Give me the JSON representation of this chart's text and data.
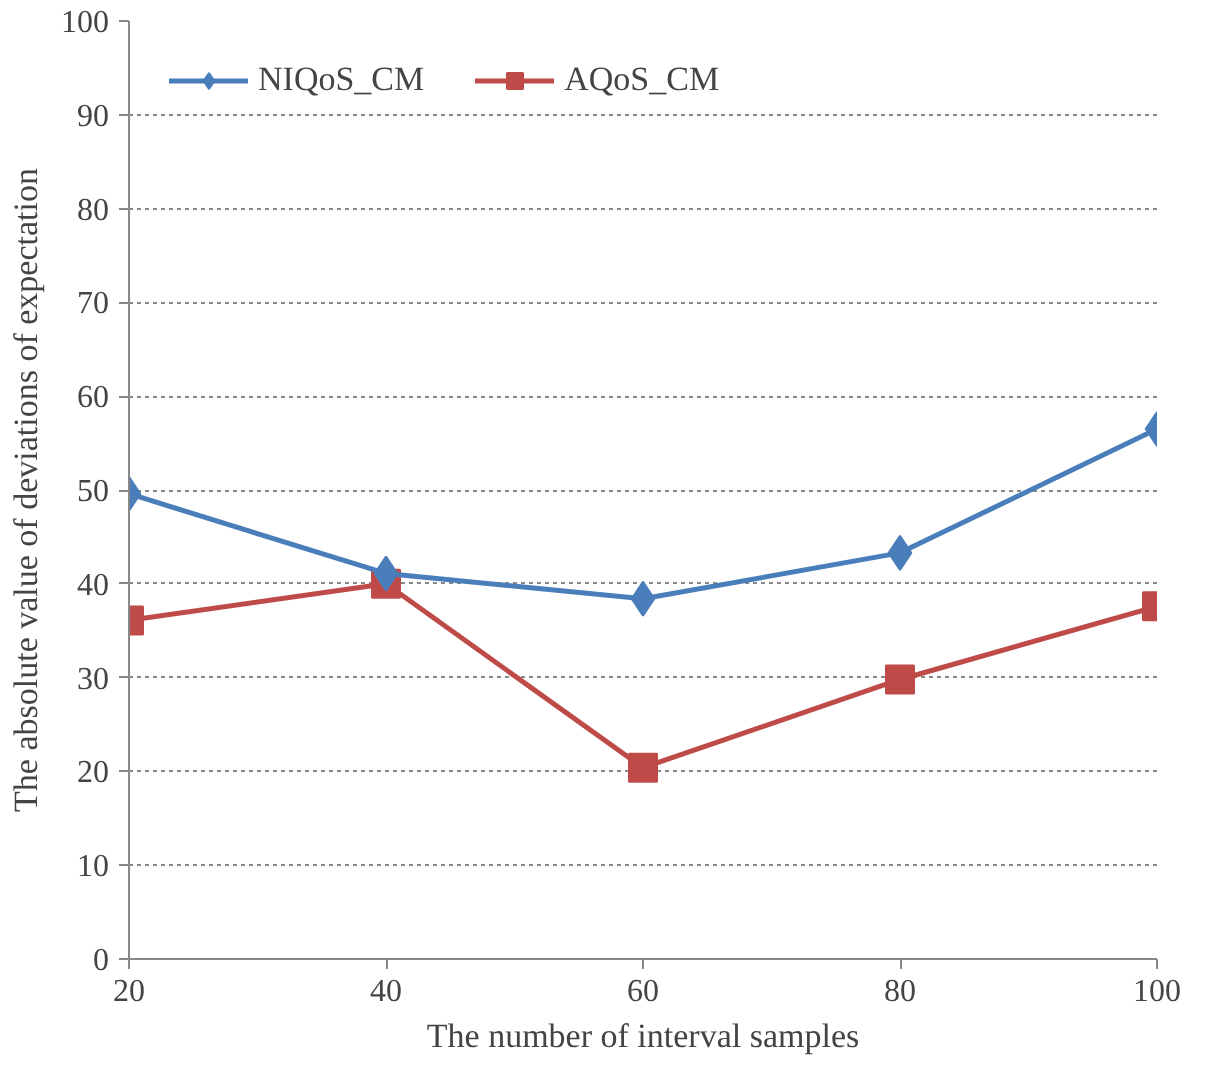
{
  "chart_data": {
    "type": "line",
    "xlabel": "The number of interval samples",
    "ylabel": "The absolute value of deviations of expectation",
    "x": [
      20,
      40,
      60,
      80,
      100
    ],
    "series": [
      {
        "name": "NIQoS_CM",
        "color": "#4a7ebb",
        "marker": "diamond",
        "values": [
          49.6,
          41.1,
          38.4,
          43.3,
          56.5
        ]
      },
      {
        "name": "AQoS_CM",
        "color": "#be4b48",
        "marker": "square",
        "values": [
          36.1,
          40.0,
          20.4,
          29.8,
          37.6
        ]
      }
    ],
    "xlim": [
      20,
      100
    ],
    "xticks": [
      20,
      40,
      60,
      80,
      100
    ],
    "ylim": [
      0,
      100
    ],
    "yticks": [
      0,
      10,
      20,
      30,
      40,
      50,
      60,
      70,
      80,
      90,
      100
    ],
    "grid": "y",
    "legend": "top left",
    "line_style": "solid"
  }
}
